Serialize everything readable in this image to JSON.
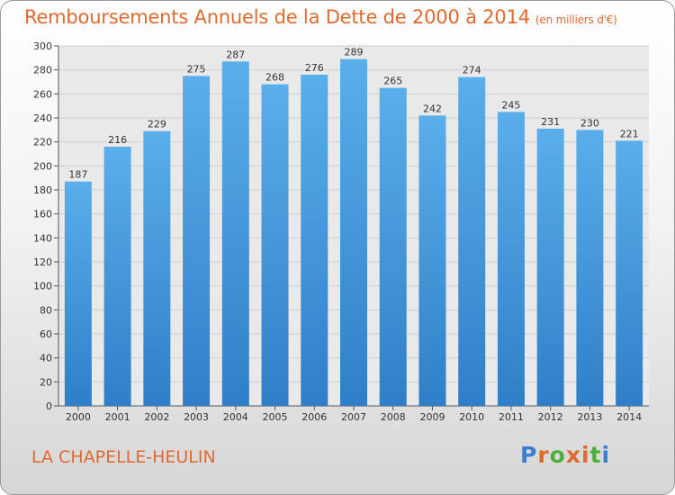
{
  "chart_data": {
    "type": "bar",
    "title": "Remboursements Annuels de la Dette de 2000 à 2014",
    "unit_note": "(en milliers d'€)",
    "categories": [
      "2000",
      "2001",
      "2002",
      "2003",
      "2004",
      "2005",
      "2006",
      "2007",
      "2008",
      "2009",
      "2010",
      "2011",
      "2012",
      "2013",
      "2014"
    ],
    "values": [
      187,
      216,
      229,
      275,
      287,
      268,
      276,
      289,
      265,
      242,
      274,
      245,
      231,
      230,
      221
    ],
    "ylim": [
      0,
      300
    ],
    "yticks": [
      0,
      20,
      40,
      60,
      80,
      100,
      120,
      140,
      160,
      180,
      200,
      220,
      240,
      260,
      280,
      300
    ],
    "grid": true,
    "bar_color": "#4a9ee0"
  },
  "footer": {
    "commune": "LA CHAPELLE-HEULIN",
    "logo_text": "Proxiti"
  }
}
